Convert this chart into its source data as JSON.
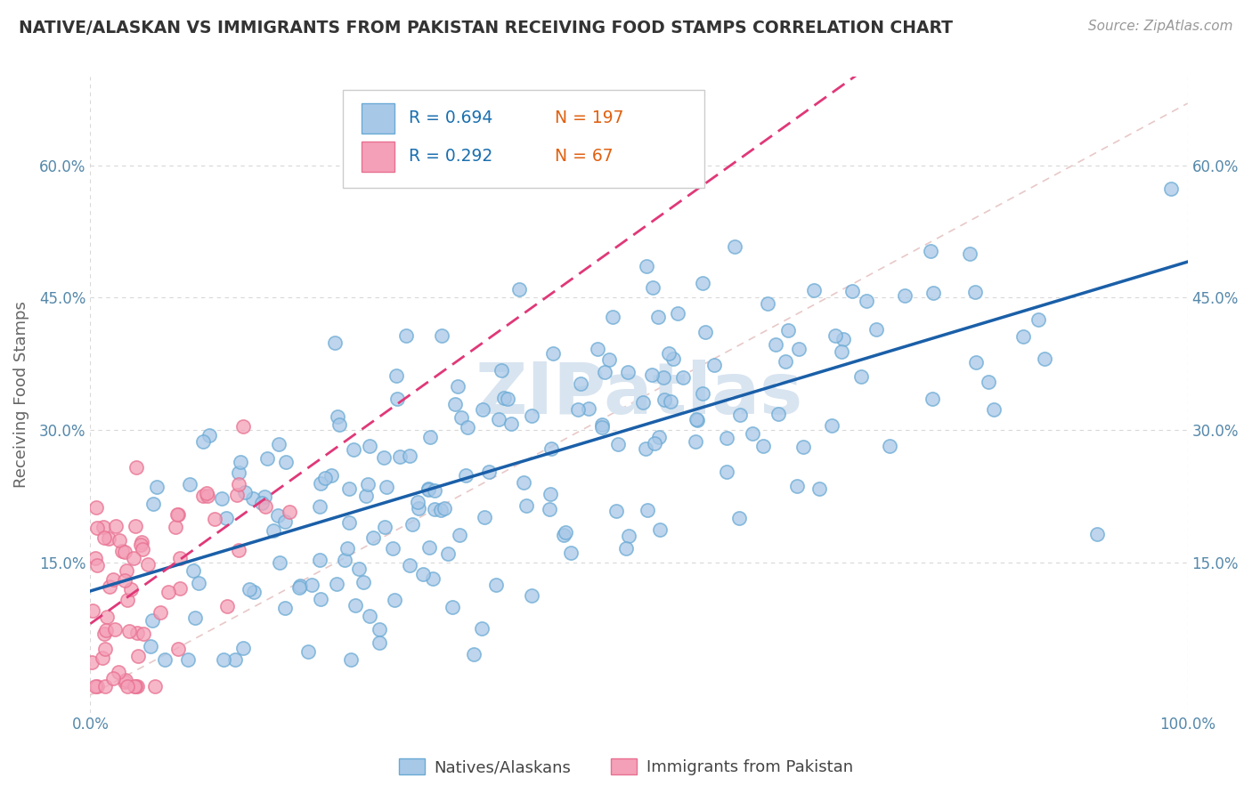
{
  "title": "NATIVE/ALASKAN VS IMMIGRANTS FROM PAKISTAN RECEIVING FOOD STAMPS CORRELATION CHART",
  "source": "Source: ZipAtlas.com",
  "ylabel": "Receiving Food Stamps",
  "xlim": [
    0,
    1
  ],
  "ylim": [
    -0.02,
    0.7
  ],
  "ytick_vals": [
    0.15,
    0.3,
    0.45,
    0.6
  ],
  "ytick_labels": [
    "15.0%",
    "30.0%",
    "45.0%",
    "60.0%"
  ],
  "blue_R": 0.694,
  "blue_N": 197,
  "pink_R": 0.292,
  "pink_N": 67,
  "blue_color": "#a8c8e8",
  "pink_color": "#f4a0b8",
  "blue_edge_color": "#6aaad4",
  "pink_edge_color": "#e87090",
  "blue_line_color": "#1a5fa8",
  "pink_line_color": "#e03878",
  "diag_line_color": "#e8c8c8",
  "watermark": "ZIPatlas",
  "watermark_color": "#d8e4f0",
  "background_color": "#ffffff",
  "grid_color": "#d8d8d8",
  "title_color": "#333333",
  "legend_R_color": "#1a6faf",
  "legend_N_color": "#e06010",
  "axis_color": "#5588aa",
  "blue_seed": 42,
  "pink_seed": 123
}
